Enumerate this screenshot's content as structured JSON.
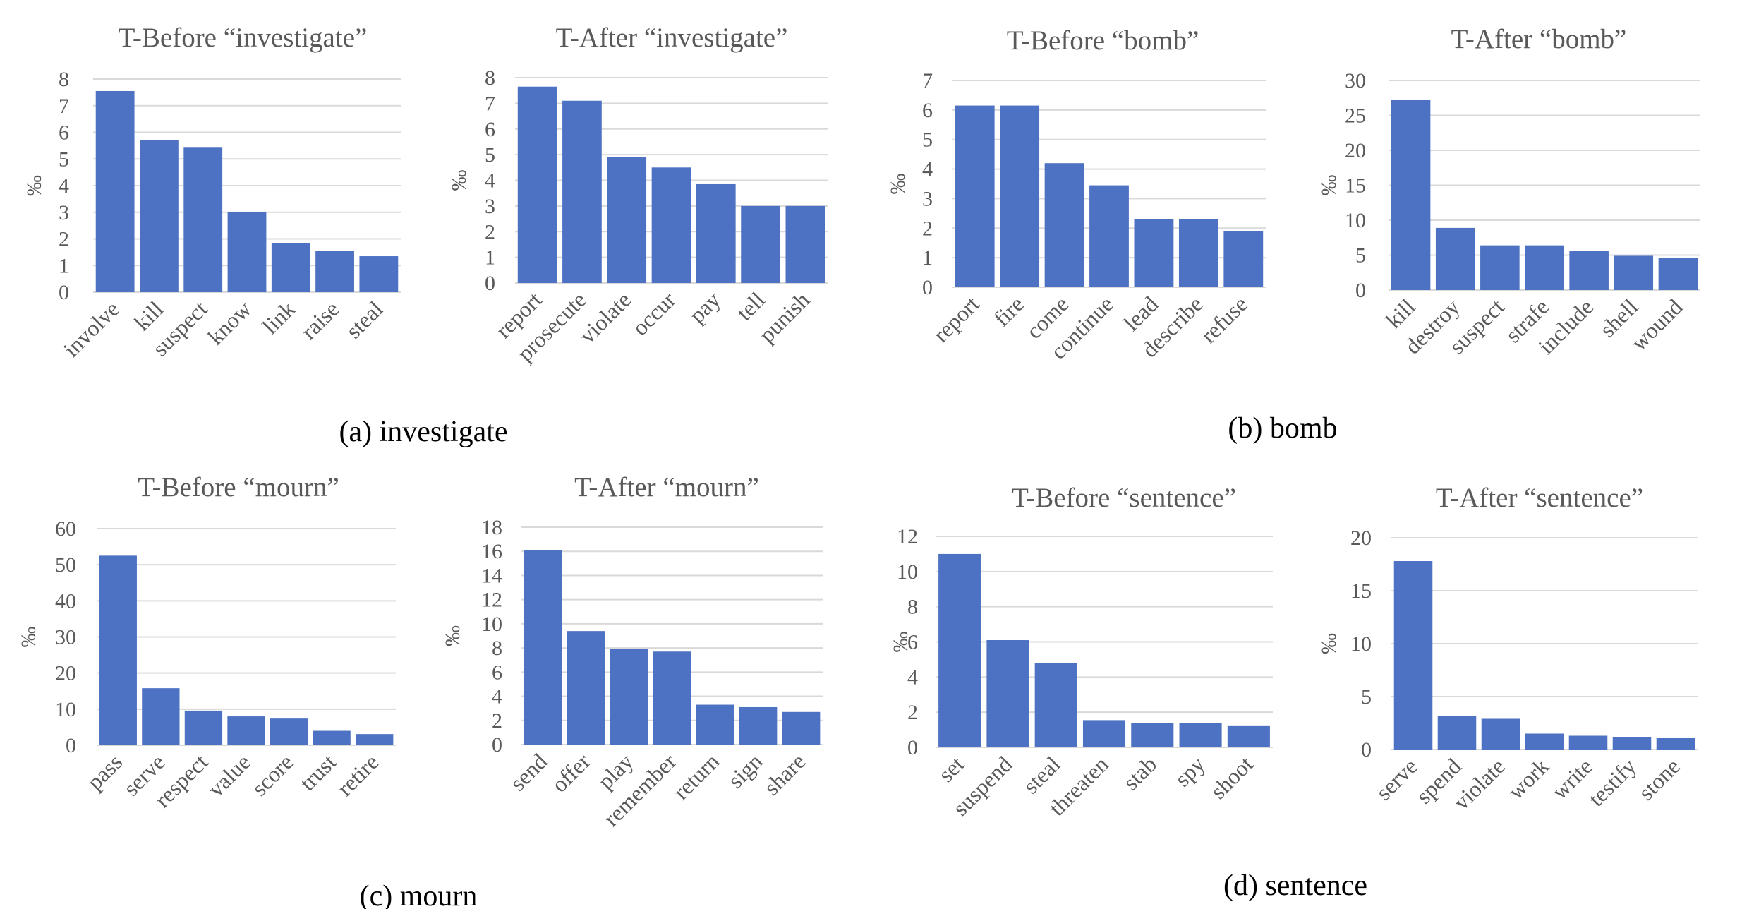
{
  "chart_data": [
    {
      "type": "bar",
      "title": "T-Before “investigate”",
      "ylabel": "‰",
      "categories": [
        "involve",
        "kill",
        "suspect",
        "know",
        "link",
        "raise",
        "steal"
      ],
      "values": [
        7.55,
        5.7,
        5.45,
        3.0,
        1.85,
        1.55,
        1.35
      ],
      "ylim": [
        0,
        8
      ],
      "yticks": [
        0,
        1,
        2,
        3,
        4,
        5,
        6,
        7,
        8
      ],
      "color": "#4E72C3"
    },
    {
      "type": "bar",
      "title": "T-After “investigate”",
      "ylabel": "‰",
      "categories": [
        "report",
        "prosecute",
        "violate",
        "occur",
        "pay",
        "tell",
        "punish"
      ],
      "values": [
        7.65,
        7.1,
        4.9,
        4.5,
        3.85,
        3.0,
        3.0
      ],
      "ylim": [
        0,
        8
      ],
      "yticks": [
        0,
        1,
        2,
        3,
        4,
        5,
        6,
        7,
        8
      ],
      "color": "#4E72C3"
    },
    {
      "type": "bar",
      "title": "T-Before “bomb”",
      "ylabel": "‰",
      "categories": [
        "report",
        "fire",
        "come",
        "continue",
        "lead",
        "describe",
        "refuse"
      ],
      "values": [
        6.15,
        6.15,
        4.2,
        3.45,
        2.3,
        2.3,
        1.9
      ],
      "ylim": [
        0,
        7
      ],
      "yticks": [
        0,
        1,
        2,
        3,
        4,
        5,
        6,
        7
      ],
      "color": "#4E72C3"
    },
    {
      "type": "bar",
      "title": "T-After “bomb”",
      "ylabel": "‰",
      "categories": [
        "kill",
        "destroy",
        "suspect",
        "strafe",
        "include",
        "shell",
        "wound"
      ],
      "values": [
        27.2,
        8.9,
        6.4,
        6.4,
        5.6,
        4.9,
        4.6
      ],
      "ylim": [
        0,
        30
      ],
      "yticks": [
        0,
        5,
        10,
        15,
        20,
        25,
        30
      ],
      "color": "#4E72C3"
    },
    {
      "type": "bar",
      "title": "T-Before “mourn”",
      "ylabel": "‰",
      "categories": [
        "pass",
        "serve",
        "respect",
        "value",
        "score",
        "trust",
        "retire"
      ],
      "values": [
        52.5,
        15.8,
        9.6,
        8.0,
        7.4,
        4.0,
        3.1
      ],
      "ylim": [
        0,
        60
      ],
      "yticks": [
        0,
        10,
        20,
        30,
        40,
        50,
        60
      ],
      "color": "#4E72C3"
    },
    {
      "type": "bar",
      "title": "T-After “mourn”",
      "ylabel": "‰",
      "categories": [
        "send",
        "offer",
        "play",
        "remember",
        "return",
        "sign",
        "share"
      ],
      "values": [
        16.1,
        9.4,
        7.9,
        7.7,
        3.3,
        3.1,
        2.7
      ],
      "ylim": [
        0,
        18
      ],
      "yticks": [
        0,
        2,
        4,
        6,
        8,
        10,
        12,
        14,
        16,
        18
      ],
      "color": "#4E72C3"
    },
    {
      "type": "bar",
      "title": "T-Before “sentence”",
      "ylabel": "‰",
      "categories": [
        "set",
        "suspend",
        "steal",
        "threaten",
        "stab",
        "spy",
        "shoot"
      ],
      "values": [
        11.0,
        6.1,
        4.8,
        1.55,
        1.4,
        1.4,
        1.25
      ],
      "ylim": [
        0,
        12
      ],
      "yticks": [
        0,
        2,
        4,
        6,
        8,
        10,
        12
      ],
      "color": "#4E72C3"
    },
    {
      "type": "bar",
      "title": "T-After “sentence”",
      "ylabel": "‰",
      "categories": [
        "serve",
        "spend",
        "violate",
        "work",
        "write",
        "testify",
        "stone"
      ],
      "values": [
        17.8,
        3.15,
        2.9,
        1.5,
        1.3,
        1.2,
        1.1
      ],
      "ylim": [
        0,
        20
      ],
      "yticks": [
        0,
        5,
        10,
        15,
        20
      ],
      "color": "#4E72C3"
    }
  ],
  "captions": [
    "(a) investigate",
    "(b) bomb",
    "(c) mourn",
    "(d) sentence"
  ]
}
